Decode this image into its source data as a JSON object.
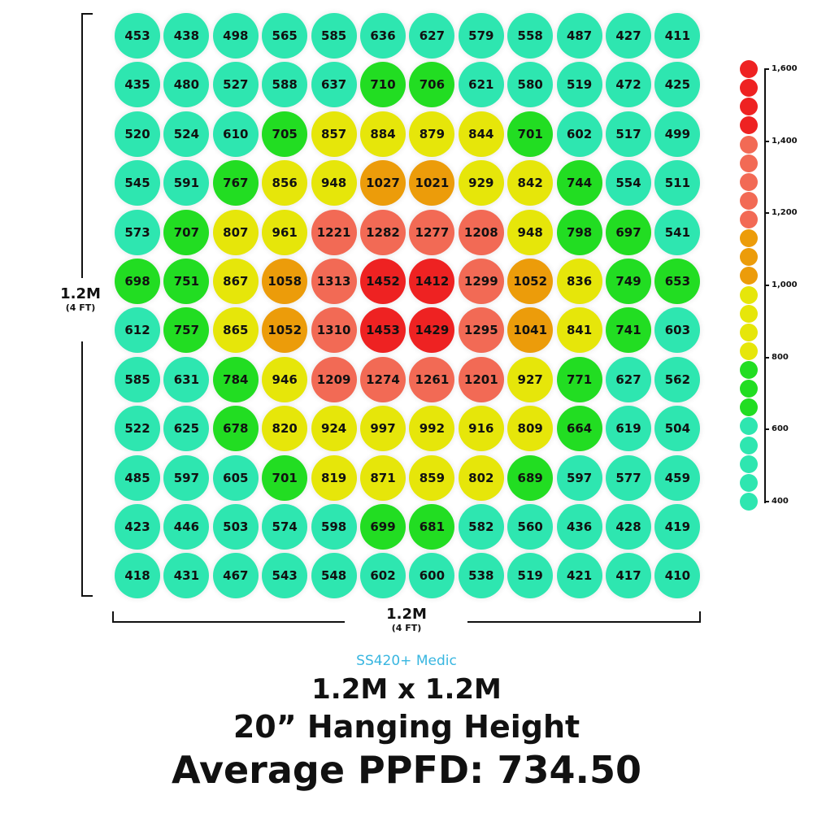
{
  "chart_data": {
    "type": "heatmap",
    "rows": [
      [
        453,
        438,
        498,
        565,
        585,
        636,
        627,
        579,
        558,
        487,
        427,
        411
      ],
      [
        435,
        480,
        527,
        588,
        637,
        710,
        706,
        621,
        580,
        519,
        472,
        425
      ],
      [
        520,
        524,
        610,
        705,
        857,
        884,
        879,
        844,
        701,
        602,
        517,
        499
      ],
      [
        545,
        591,
        767,
        856,
        948,
        1027,
        1021,
        929,
        842,
        744,
        554,
        511
      ],
      [
        573,
        707,
        807,
        961,
        1221,
        1282,
        1277,
        1208,
        948,
        798,
        697,
        541
      ],
      [
        698,
        751,
        867,
        1058,
        1313,
        1452,
        1412,
        1299,
        1052,
        836,
        749,
        653
      ],
      [
        612,
        757,
        865,
        1052,
        1310,
        1453,
        1429,
        1295,
        1041,
        841,
        741,
        603
      ],
      [
        585,
        631,
        784,
        946,
        1209,
        1274,
        1261,
        1201,
        927,
        771,
        627,
        562
      ],
      [
        522,
        625,
        678,
        820,
        924,
        997,
        992,
        916,
        809,
        664,
        619,
        504
      ],
      [
        485,
        597,
        605,
        701,
        819,
        871,
        859,
        802,
        689,
        597,
        577,
        459
      ],
      [
        423,
        446,
        503,
        574,
        598,
        699,
        681,
        582,
        560,
        436,
        428,
        419
      ],
      [
        418,
        431,
        467,
        543,
        548,
        602,
        600,
        538,
        519,
        421,
        417,
        410
      ]
    ],
    "color_scale": {
      "min": 400,
      "max": 1600,
      "tick_labels": [
        "1,600",
        "1,400",
        "1,200",
        "1,000",
        "800",
        "600",
        "400"
      ],
      "tick_values": [
        1600,
        1400,
        1200,
        1000,
        800,
        600,
        400
      ],
      "colors": {
        "band_400_650": "#2ee6b0",
        "band_650_800": "#22dd22",
        "band_800_1000": "#e6e60a",
        "band_1000_1150": "#ec9c0a",
        "band_1150_1400": "#f26a55",
        "band_1400_1600": "#ee2222"
      }
    },
    "x_dimension": {
      "main": "1.2M",
      "sub": "(4 FT)"
    },
    "y_dimension": {
      "main": "1.2M",
      "sub": "(4 FT)"
    }
  },
  "footer": {
    "product": "SS420+ Medic",
    "area": "1.2M x 1.2M",
    "height": "20” Hanging Height",
    "average": "Average PPFD: 734.50"
  }
}
